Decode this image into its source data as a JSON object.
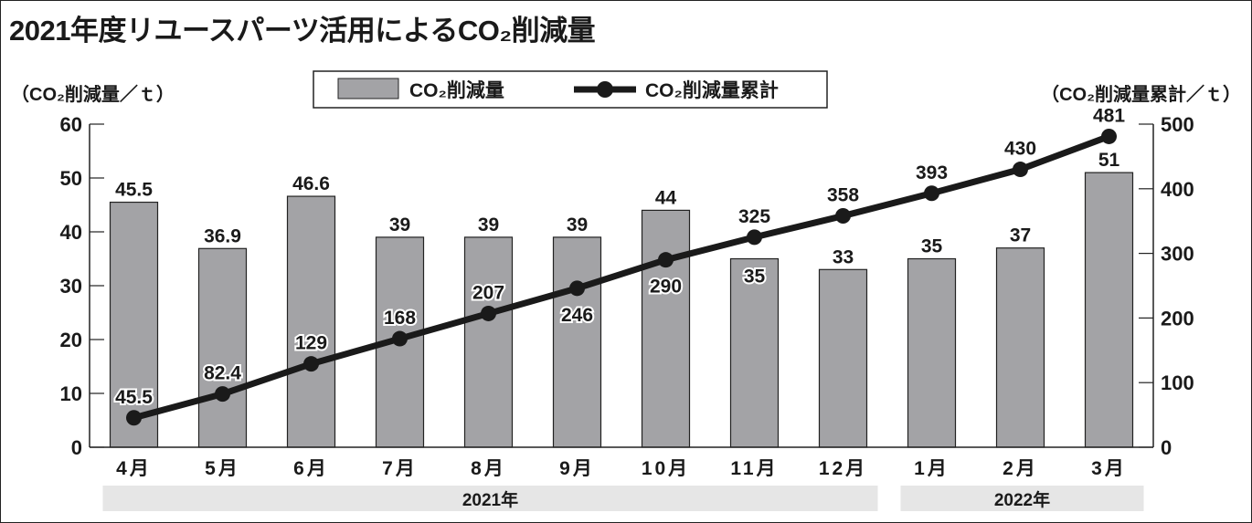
{
  "chart_data": {
    "type": "bar+line",
    "title": "2021年度リユースパーツ活用によるCO₂削減量",
    "categories": [
      "4月",
      "5月",
      "6月",
      "7月",
      "8月",
      "9月",
      "10月",
      "11月",
      "12月",
      "1月",
      "2月",
      "3月"
    ],
    "year_groups": [
      {
        "label": "2021年",
        "from": 0,
        "to": 8
      },
      {
        "label": "2022年",
        "from": 9,
        "to": 11
      }
    ],
    "series": [
      {
        "name": "CO₂削減量",
        "type": "bar",
        "axis": "left",
        "color": "#a3a3a6",
        "values": [
          45.5,
          36.9,
          46.6,
          39,
          39,
          39,
          44,
          35,
          33,
          35,
          37,
          51
        ],
        "labels": [
          "45.5",
          "36.9",
          "46.6",
          "39",
          "39",
          "39",
          "44",
          "35",
          "33",
          "35",
          "37",
          "51"
        ],
        "label_pos": [
          "above",
          "above",
          "above",
          "above",
          "above",
          "above",
          "above",
          "inside",
          "above",
          "above",
          "above",
          "above"
        ]
      },
      {
        "name": "CO₂削減量累計",
        "type": "line",
        "axis": "right",
        "color": "#1a1a1a",
        "values": [
          45.5,
          82.4,
          129,
          168,
          207,
          246,
          290,
          325,
          358,
          393,
          430,
          481
        ],
        "labels": [
          "45.5",
          "82.4",
          "129",
          "168",
          "207",
          "246",
          "290",
          "325",
          "358",
          "393",
          "430",
          "481"
        ],
        "label_pos": [
          "above",
          "above",
          "above",
          "above",
          "above",
          "below",
          "below",
          "above",
          "above",
          "above",
          "above",
          "above"
        ]
      }
    ],
    "ylabel": "（CO₂削減量／ｔ）",
    "y2label": "（CO₂削減量累計／ｔ）",
    "ylim": [
      0,
      60
    ],
    "yticks": [
      0,
      10,
      20,
      30,
      40,
      50,
      60
    ],
    "y2lim": [
      0,
      500
    ],
    "y2ticks": [
      0,
      100,
      200,
      300,
      400,
      500
    ],
    "legend_position": "top-center",
    "grid": false
  }
}
